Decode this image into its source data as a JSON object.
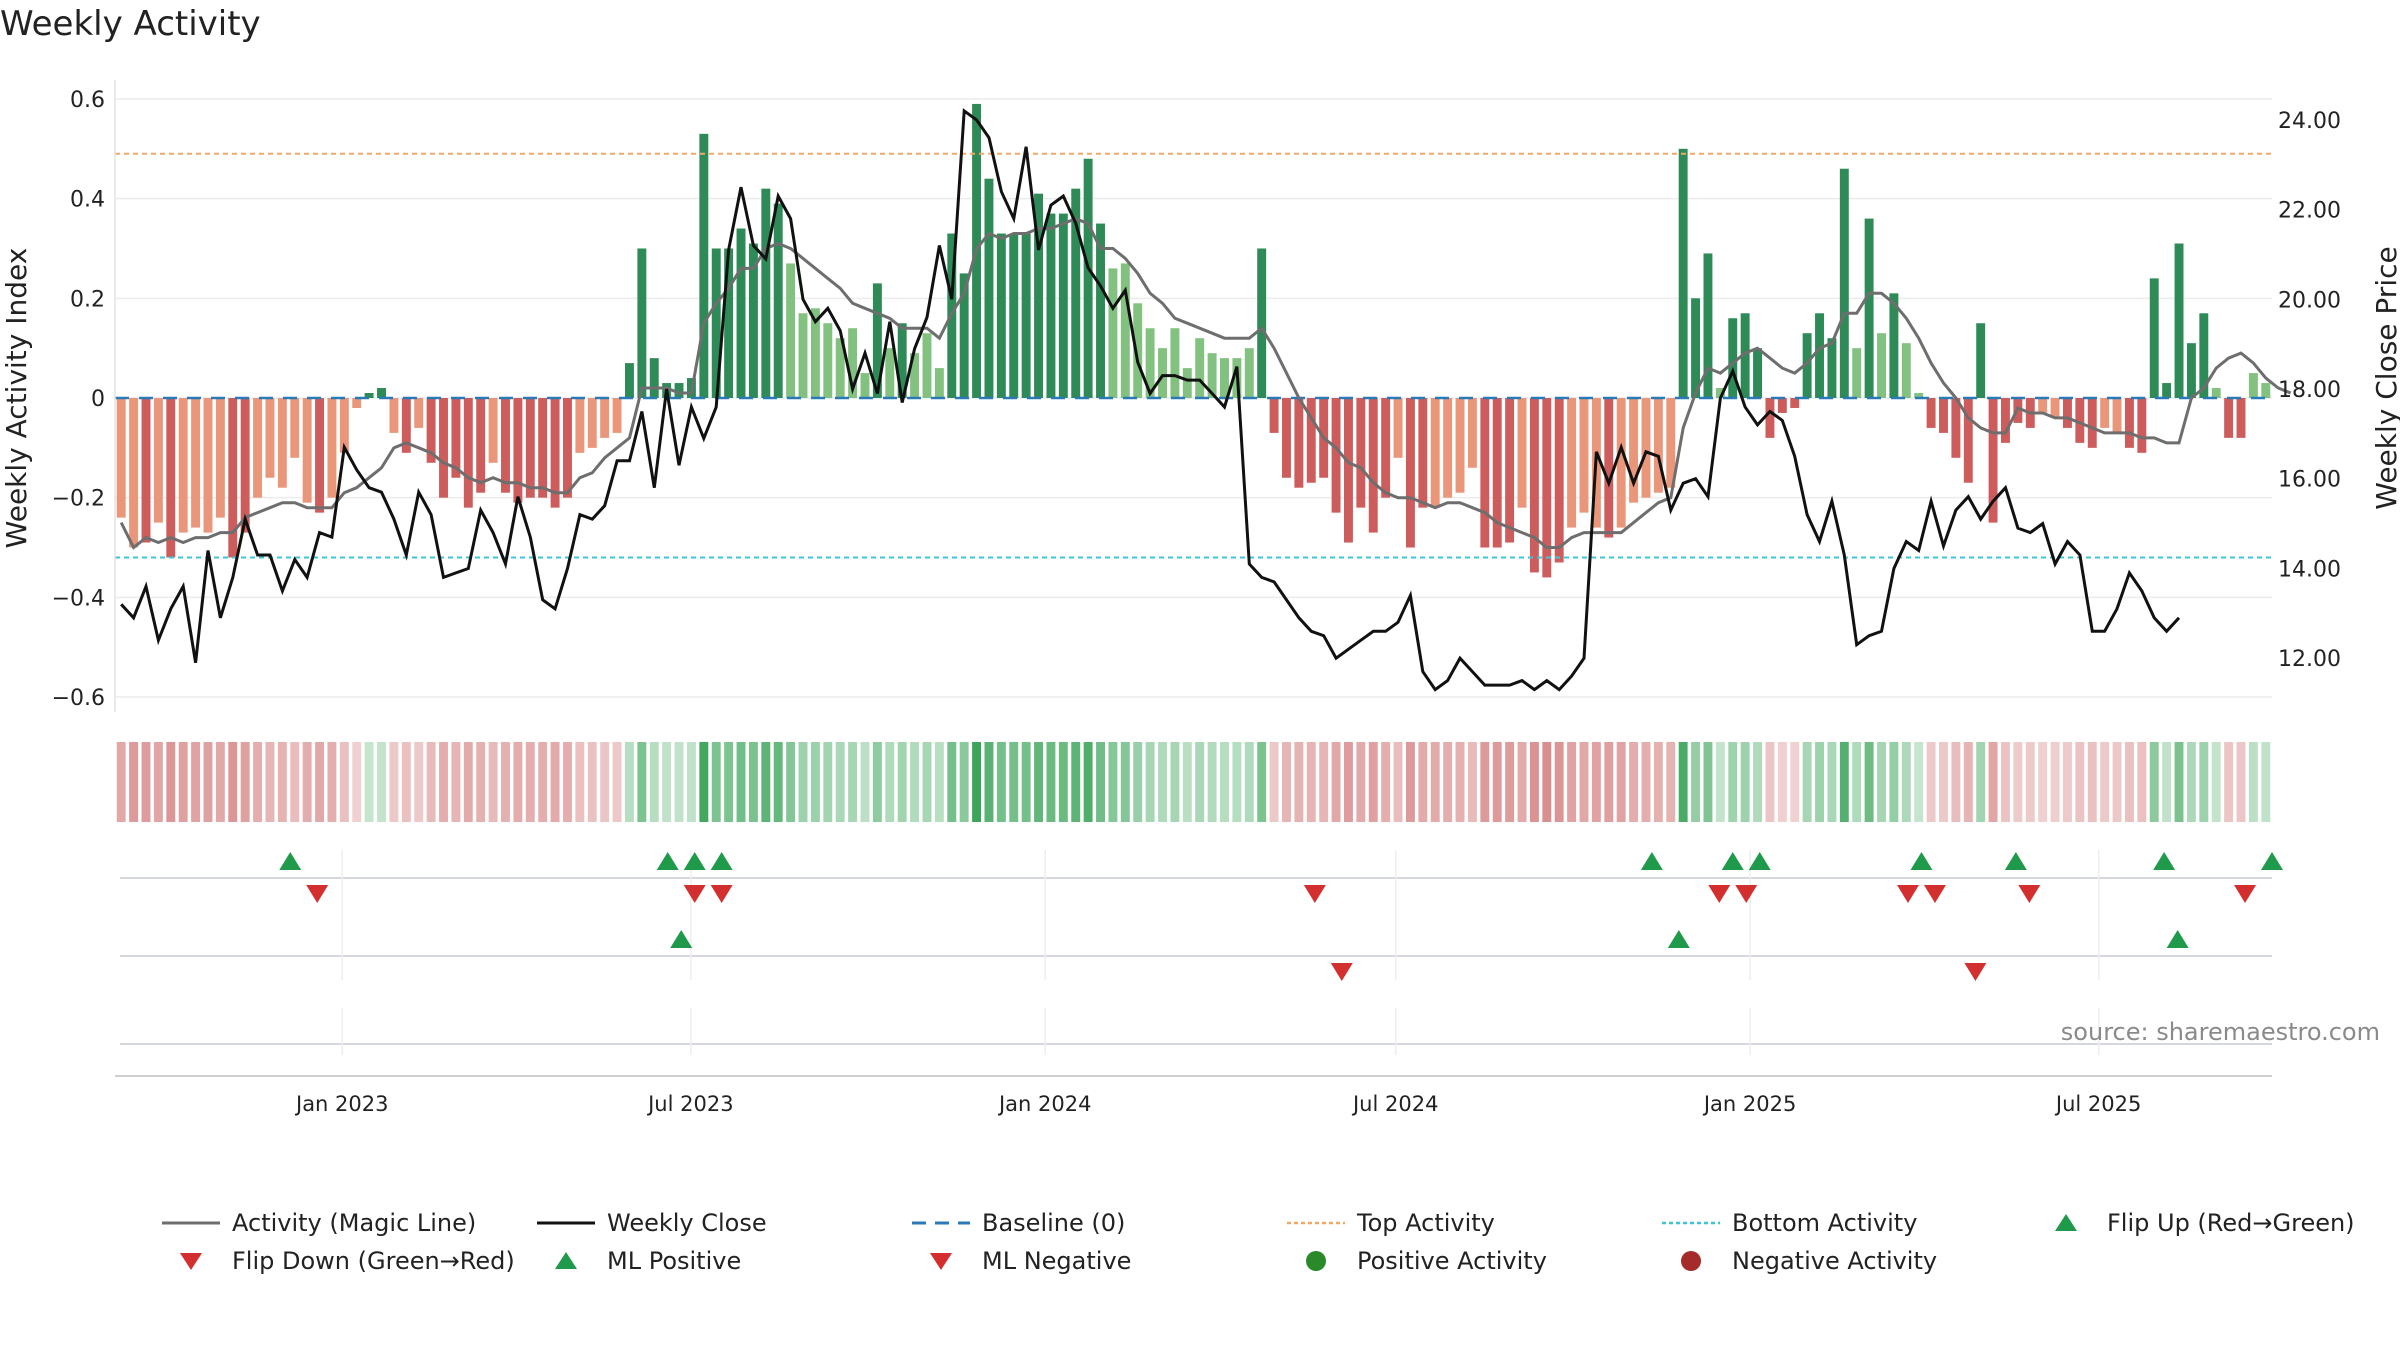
{
  "chart_data": {
    "type": "bar",
    "title": "Weekly Activity",
    "source": "source: sharemaestro.com",
    "ylabel_left": "Weekly Activity Index",
    "ylabel_right": "Weekly Close Price",
    "ylim_left": [
      -0.63,
      0.63
    ],
    "ylim_right": [
      10.8,
      24.8
    ],
    "left_ticks": [
      0.6,
      0.4,
      0.2,
      0,
      -0.2,
      -0.4,
      -0.6
    ],
    "left_tick_labels": [
      "0.6",
      "0.4",
      "0.2",
      "0",
      "−0.2",
      "−0.4",
      "−0.6"
    ],
    "right_ticks": [
      24,
      22,
      20,
      18,
      16,
      14,
      12
    ],
    "right_tick_labels": [
      "24.00",
      "22.00",
      "20.00",
      "18.00",
      "16.00",
      "14.00",
      "12.00"
    ],
    "x_start": "2022-09-05",
    "x_end": "2025-09-29",
    "date_ticks": [
      "2023-01-01",
      "2023-07-01",
      "2024-01-01",
      "2024-07-01",
      "2025-01-01",
      "2025-07-01"
    ],
    "date_tick_labels": [
      "Jan 2023",
      "Jul 2023",
      "Jan 2024",
      "Jul 2024",
      "Jan 2025",
      "Jul 2025"
    ],
    "top_activity": 0.49,
    "bottom_activity": -0.32,
    "baseline": 0,
    "grid": true,
    "legend_position": "bottom",
    "colors": {
      "strong_green": "#2e8b57",
      "light_green": "#82c17f",
      "strong_red": "#cd5c5c",
      "light_red": "#e9967a",
      "magic_line": "#6e6e6e",
      "close_line": "#111111",
      "baseline": "#2a7ab8",
      "top_line": "#f0a868",
      "bottom_line": "#3ec6d8",
      "marker_up": "#1f9a4a",
      "marker_down": "#d32f2f",
      "positive_dot": "#2a8a2a",
      "negative_dot": "#a52a2a"
    },
    "series": [
      {
        "name": "Weekly Activity",
        "values": [
          -0.24,
          -0.3,
          -0.29,
          -0.25,
          -0.32,
          -0.27,
          -0.26,
          -0.27,
          -0.24,
          -0.32,
          -0.27,
          -0.2,
          -0.16,
          -0.18,
          -0.12,
          -0.21,
          -0.23,
          -0.2,
          -0.11,
          -0.02,
          0.01,
          0.02,
          -0.07,
          -0.11,
          -0.06,
          -0.13,
          -0.2,
          -0.16,
          -0.22,
          -0.19,
          -0.13,
          -0.19,
          -0.21,
          -0.2,
          -0.2,
          -0.22,
          -0.2,
          -0.11,
          -0.1,
          -0.08,
          -0.07,
          0.07,
          0.3,
          0.08,
          0.03,
          0.03,
          0.04,
          0.53,
          0.3,
          0.3,
          0.34,
          0.31,
          0.42,
          0.39,
          0.27,
          0.17,
          0.18,
          0.15,
          0.12,
          0.14,
          0.05,
          0.23,
          0.1,
          0.15,
          0.09,
          0.13,
          0.06,
          0.33,
          0.25,
          0.59,
          0.44,
          0.33,
          0.33,
          0.33,
          0.41,
          0.37,
          0.37,
          0.42,
          0.48,
          0.35,
          0.26,
          0.27,
          0.19,
          0.14,
          0.1,
          0.14,
          0.06,
          0.12,
          0.09,
          0.08,
          0.08,
          0.1,
          0.3,
          -0.07,
          -0.16,
          -0.18,
          -0.17,
          -0.16,
          -0.23,
          -0.29,
          -0.22,
          -0.27,
          -0.2,
          -0.12,
          -0.3,
          -0.22,
          -0.22,
          -0.2,
          -0.19,
          -0.14,
          -0.3,
          -0.3,
          -0.29,
          -0.22,
          -0.35,
          -0.36,
          -0.33,
          -0.26,
          -0.23,
          -0.26,
          -0.28,
          -0.26,
          -0.21,
          -0.2,
          -0.19,
          -0.18,
          0.5,
          0.2,
          0.29,
          0.02,
          0.16,
          0.17,
          0.1,
          -0.08,
          -0.03,
          -0.02,
          0.13,
          0.17,
          0.12,
          0.46,
          0.1,
          0.36,
          0.13,
          0.21,
          0.11,
          0.01,
          -0.06,
          -0.07,
          -0.12,
          -0.17,
          0.15,
          -0.25,
          -0.09,
          -0.05,
          -0.06,
          -0.03,
          -0.04,
          -0.06,
          -0.09,
          -0.1,
          -0.06,
          -0.07,
          -0.1,
          -0.11,
          0.24,
          0.03,
          0.31,
          0.11,
          0.17,
          0.02,
          -0.08,
          -0.08,
          0.05,
          0.03
        ]
      },
      {
        "name": "Activity (Magic Line)",
        "values": [
          -0.25,
          -0.3,
          -0.28,
          -0.29,
          -0.28,
          -0.29,
          -0.28,
          -0.28,
          -0.27,
          -0.27,
          -0.24,
          -0.23,
          -0.22,
          -0.21,
          -0.21,
          -0.22,
          -0.22,
          -0.22,
          -0.19,
          -0.18,
          -0.16,
          -0.14,
          -0.1,
          -0.09,
          -0.1,
          -0.11,
          -0.13,
          -0.14,
          -0.16,
          -0.17,
          -0.16,
          -0.17,
          -0.17,
          -0.18,
          -0.18,
          -0.19,
          -0.19,
          -0.16,
          -0.15,
          -0.12,
          -0.1,
          -0.08,
          0.02,
          0.02,
          0.02,
          0.01,
          0.01,
          0.15,
          0.19,
          0.22,
          0.26,
          0.26,
          0.3,
          0.31,
          0.3,
          0.28,
          0.26,
          0.24,
          0.22,
          0.19,
          0.18,
          0.17,
          0.16,
          0.14,
          0.14,
          0.14,
          0.12,
          0.17,
          0.21,
          0.3,
          0.33,
          0.32,
          0.33,
          0.33,
          0.34,
          0.34,
          0.35,
          0.36,
          0.35,
          0.3,
          0.3,
          0.28,
          0.25,
          0.21,
          0.19,
          0.16,
          0.15,
          0.14,
          0.13,
          0.12,
          0.12,
          0.12,
          0.14,
          0.1,
          0.05,
          0,
          -0.04,
          -0.08,
          -0.1,
          -0.13,
          -0.14,
          -0.17,
          -0.19,
          -0.2,
          -0.2,
          -0.21,
          -0.22,
          -0.21,
          -0.21,
          -0.22,
          -0.23,
          -0.25,
          -0.26,
          -0.27,
          -0.28,
          -0.3,
          -0.3,
          -0.28,
          -0.27,
          -0.27,
          -0.27,
          -0.27,
          -0.25,
          -0.23,
          -0.21,
          -0.2,
          -0.06,
          0.01,
          0.06,
          0.05,
          0.07,
          0.09,
          0.1,
          0.08,
          0.06,
          0.05,
          0.07,
          0.1,
          0.11,
          0.17,
          0.17,
          0.21,
          0.21,
          0.19,
          0.16,
          0.12,
          0.07,
          0.03,
          0,
          -0.04,
          -0.06,
          -0.07,
          -0.07,
          -0.02,
          -0.03,
          -0.03,
          -0.04,
          -0.04,
          -0.05,
          -0.06,
          -0.07,
          -0.07,
          -0.07,
          -0.08,
          -0.08,
          -0.09,
          -0.09,
          0,
          0.02,
          0.06,
          0.08,
          0.09,
          0.07,
          0.04,
          0.02,
          0.01
        ]
      },
      {
        "name": "Weekly Close",
        "values": [
          13.2,
          12.9,
          13.6,
          12.4,
          13.1,
          13.6,
          11.9,
          14.4,
          12.9,
          13.8,
          15.1,
          14.3,
          14.3,
          13.5,
          14.2,
          13.8,
          14.8,
          14.7,
          16.7,
          16.2,
          15.8,
          15.7,
          15.1,
          14.3,
          15.7,
          15.2,
          13.8,
          13.9,
          14.0,
          15.3,
          14.8,
          14.1,
          15.6,
          14.7,
          13.3,
          13.1,
          14.0,
          15.2,
          15.1,
          15.4,
          16.4,
          16.4,
          17.5,
          15.8,
          18.0,
          16.3,
          17.6,
          16.9,
          17.6,
          21.1,
          22.5,
          21.2,
          20.9,
          22.3,
          21.8,
          20.0,
          19.5,
          19.8,
          19.3,
          18.0,
          18.8,
          17.9,
          19.5,
          17.7,
          18.9,
          19.6,
          21.2,
          20.0,
          24.2,
          24.0,
          23.6,
          22.4,
          21.8,
          23.4,
          21.1,
          22.1,
          22.3,
          21.7,
          20.7,
          20.3,
          19.8,
          20.2,
          18.6,
          17.9,
          18.3,
          18.3,
          18.2,
          18.2,
          17.9,
          17.6,
          18.5,
          14.1,
          13.8,
          13.7,
          13.3,
          12.9,
          12.6,
          12.5,
          12.0,
          12.2,
          12.4,
          12.6,
          12.6,
          12.8,
          13.4,
          11.7,
          11.3,
          11.5,
          12.0,
          11.7,
          11.4,
          11.4,
          11.4,
          11.5,
          11.3,
          11.5,
          11.3,
          11.6,
          12.0,
          16.6,
          15.9,
          16.7,
          15.9,
          16.6,
          16.5,
          15.3,
          15.9,
          16.0,
          15.6,
          17.8,
          18.4,
          17.6,
          17.2,
          17.5,
          17.3,
          16.5,
          15.2,
          14.6,
          15.5,
          14.3,
          12.3,
          12.5,
          12.6,
          14.0,
          14.6,
          14.4,
          15.5,
          14.5,
          15.3,
          15.6,
          15.1,
          15.5,
          15.8,
          14.9,
          14.8,
          15.0,
          14.1,
          14.6,
          14.3,
          12.6,
          12.6,
          13.1,
          13.9,
          13.5,
          12.9,
          12.6,
          12.9
        ]
      }
    ],
    "strips": {
      "flip_up_dates": [
        "2022-12-05",
        "2023-06-19",
        "2023-07-03",
        "2023-07-17",
        "2024-11-11",
        "2024-12-23",
        "2025-01-06",
        "2025-03-31",
        "2025-05-19",
        "2025-08-04",
        "2025-09-29"
      ],
      "flip_down_dates": [
        "2022-12-19",
        "2023-07-03",
        "2023-07-17",
        "2024-05-20",
        "2024-12-16",
        "2024-12-30",
        "2025-03-24",
        "2025-04-07",
        "2025-05-26",
        "2025-09-15"
      ],
      "ml_positive_dates": [
        "2023-06-26",
        "2024-11-25",
        "2025-08-11"
      ],
      "ml_negative_dates": [
        "2024-06-03",
        "2025-04-28"
      ]
    },
    "legend": [
      {
        "label": "Activity (Magic Line)",
        "kind": "line",
        "color": "#6e6e6e"
      },
      {
        "label": "Weekly Close",
        "kind": "line",
        "color": "#111111"
      },
      {
        "label": "Baseline (0)",
        "kind": "dash",
        "color": "#2a7ab8"
      },
      {
        "label": "Top Activity",
        "kind": "dot-line",
        "color": "#f0a868"
      },
      {
        "label": "Bottom Activity",
        "kind": "dot-line",
        "color": "#3ec6d8"
      },
      {
        "label": "Flip Up (Red→Green)",
        "kind": "tri-up",
        "color": "#1f9a4a"
      },
      {
        "label": "Flip Down (Green→Red)",
        "kind": "tri-down",
        "color": "#d32f2f"
      },
      {
        "label": "ML Positive",
        "kind": "tri-up",
        "color": "#1f9a4a"
      },
      {
        "label": "ML Negative",
        "kind": "tri-down",
        "color": "#d32f2f"
      },
      {
        "label": "Positive Activity",
        "kind": "circle",
        "color": "#2a8a2a"
      },
      {
        "label": "Negative Activity",
        "kind": "circle",
        "color": "#a52a2a"
      }
    ]
  }
}
